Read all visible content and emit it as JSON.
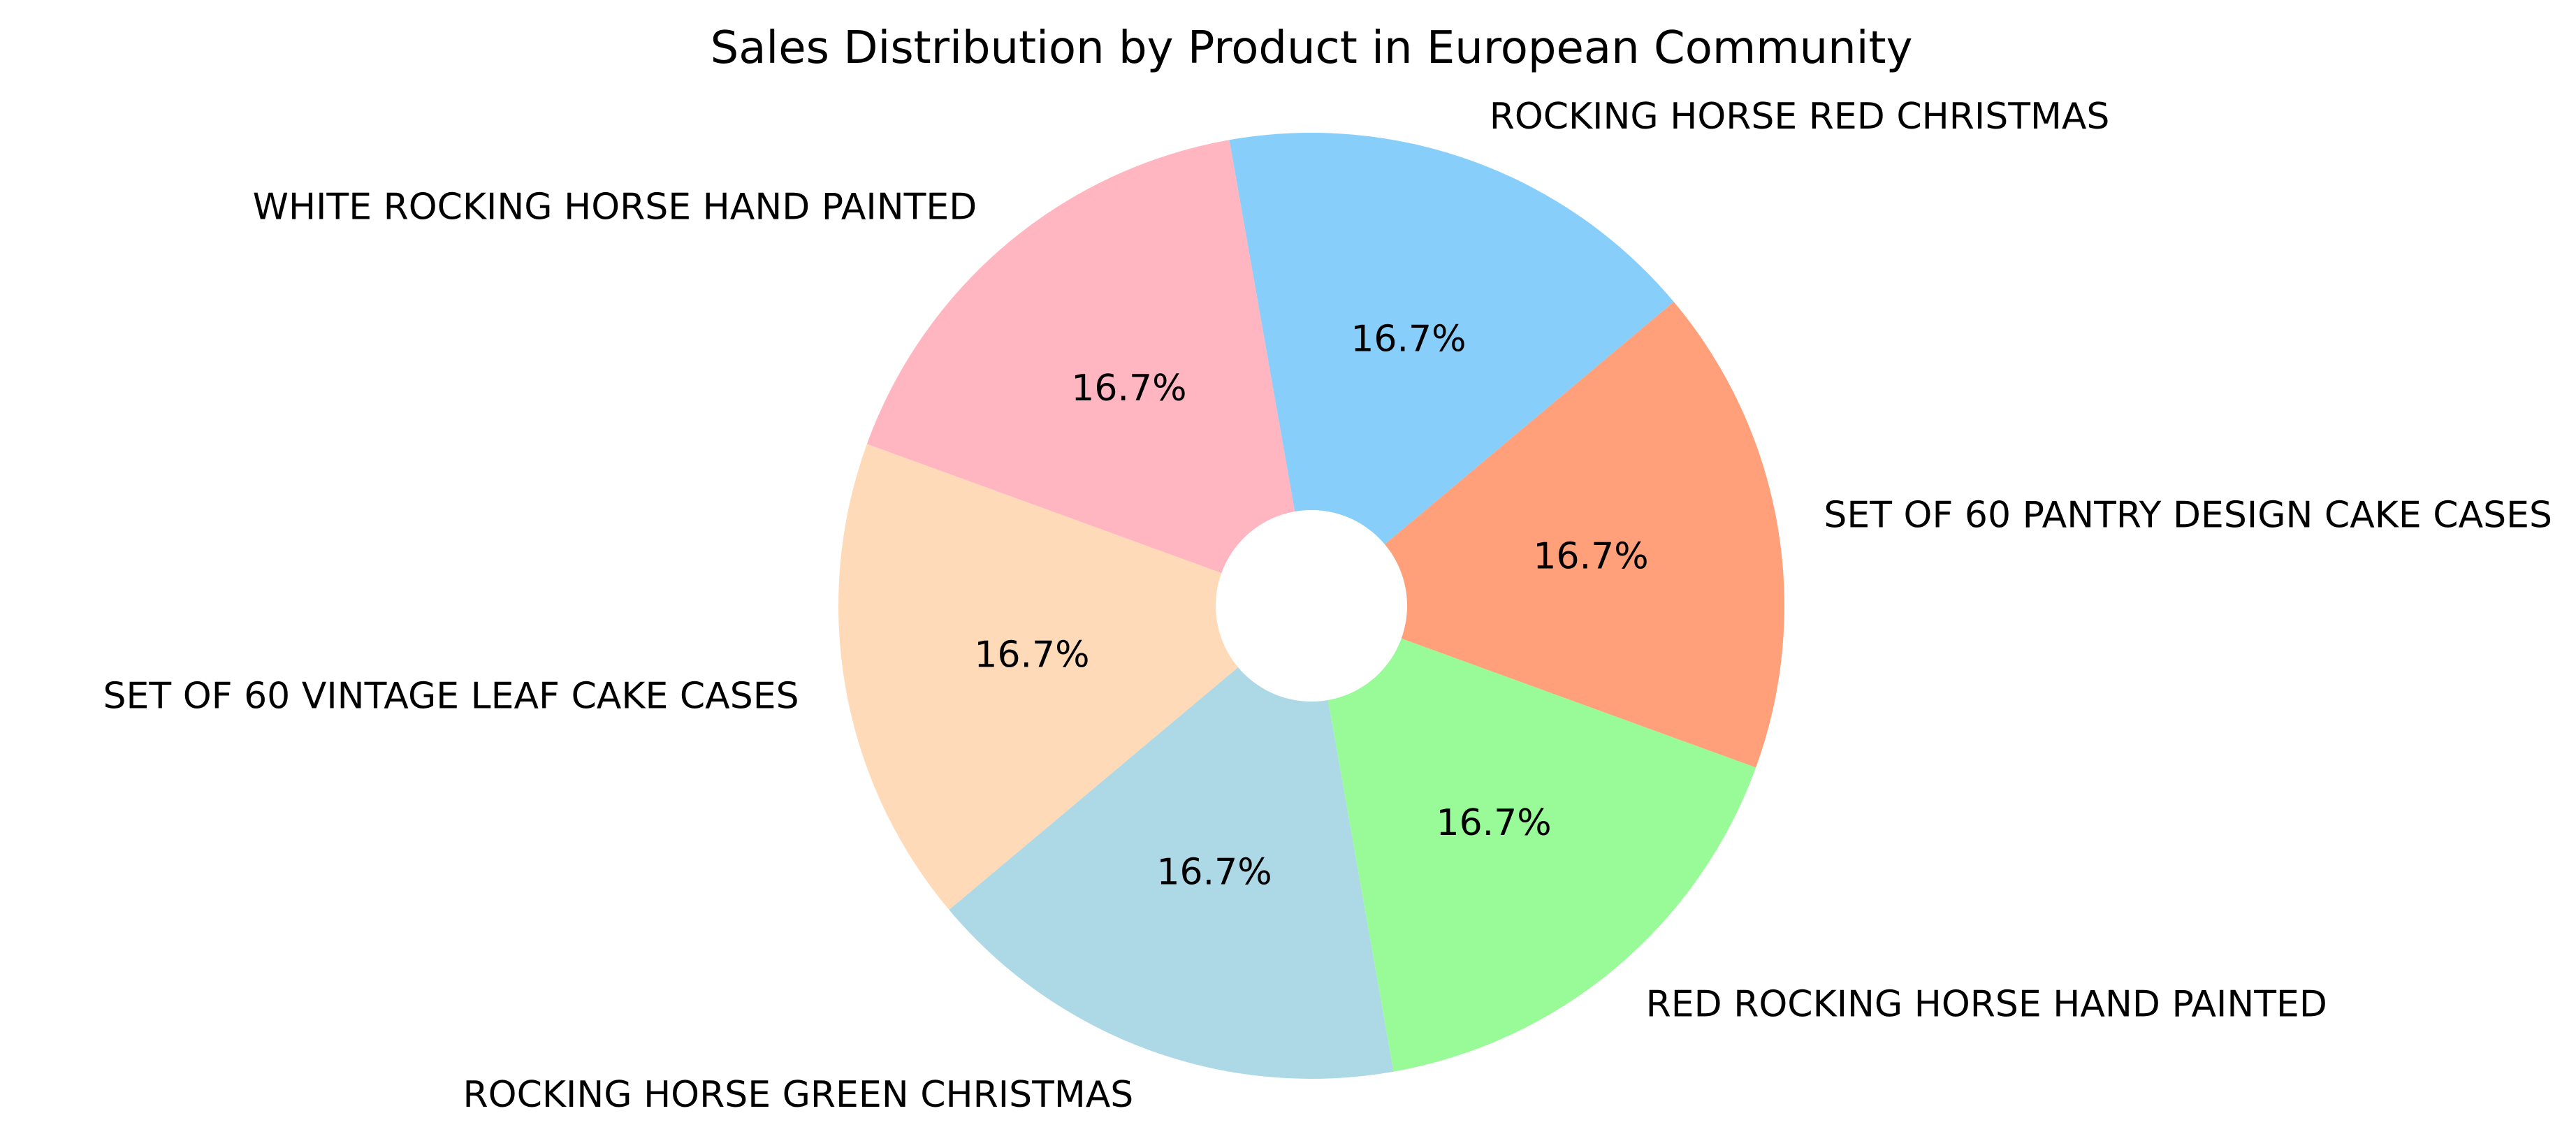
{
  "chart_data": {
    "type": "pie",
    "title": "Sales Distribution by Product in European Community",
    "slices": [
      {
        "label": "SET OF 60 PANTRY DESIGN CAKE CASES",
        "value": 16.7,
        "pct_label": "16.7%",
        "color": "#FFA07A"
      },
      {
        "label": "ROCKING HORSE RED CHRISTMAS",
        "value": 16.7,
        "pct_label": "16.7%",
        "color": "#87CEFA"
      },
      {
        "label": "WHITE ROCKING HORSE HAND PAINTED",
        "value": 16.7,
        "pct_label": "16.7%",
        "color": "#FFB6C1"
      },
      {
        "label": "SET OF 60 VINTAGE LEAF CAKE CASES",
        "value": 16.7,
        "pct_label": "16.7%",
        "color": "#FFDAB9"
      },
      {
        "label": "ROCKING HORSE GREEN CHRISTMAS",
        "value": 16.7,
        "pct_label": "16.7%",
        "color": "#ADD8E6"
      },
      {
        "label": "RED ROCKING HORSE HAND PAINTED",
        "value": 16.7,
        "pct_label": "16.7%",
        "color": "#98FB98"
      }
    ],
    "start_angle_deg": -20,
    "direction": "counterclockwise",
    "center_hole": true,
    "legend": "none"
  }
}
